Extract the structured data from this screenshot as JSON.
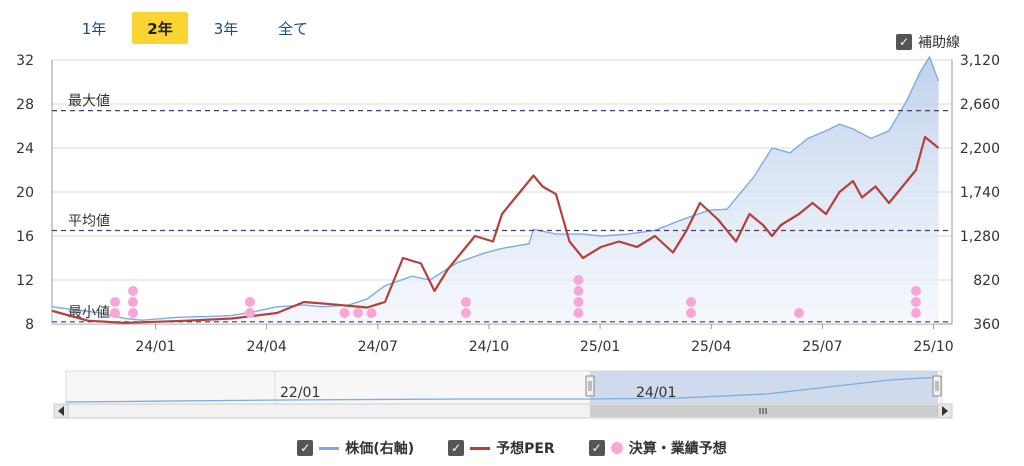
{
  "tabs": [
    {
      "label": "1年",
      "active": false
    },
    {
      "label": "2年",
      "active": true
    },
    {
      "label": "3年",
      "active": false
    },
    {
      "label": "全て",
      "active": false
    }
  ],
  "aux_toggle": {
    "label": "補助線",
    "checked": true
  },
  "legend": [
    {
      "label": "株価(右軸)",
      "kind": "line",
      "color": "#7aaee0"
    },
    {
      "label": "予想PER",
      "kind": "line",
      "color": "#b5403a"
    },
    {
      "label": "決算・業績予想",
      "kind": "dot",
      "color": "#f7a6d8"
    }
  ],
  "navigator": {
    "labels": [
      "22/01",
      "24/01"
    ]
  },
  "chart_data": {
    "type": "line",
    "x_ticks": [
      "24/01",
      "24/04",
      "24/07",
      "24/10",
      "25/01",
      "25/04",
      "25/07",
      "25/10"
    ],
    "y_left": {
      "ticks": [
        8,
        12,
        16,
        20,
        24,
        28,
        32
      ],
      "range": [
        8,
        32
      ]
    },
    "y_right": {
      "ticks": [
        360,
        820,
        1280,
        1740,
        2200,
        2660,
        3120
      ],
      "range": [
        360,
        3120
      ]
    },
    "reference_lines": [
      {
        "label": "最大値",
        "value": 27.4
      },
      {
        "label": "平均値",
        "value": 16.5
      },
      {
        "label": "最小値",
        "value": 8.2
      }
    ],
    "series": [
      {
        "name": "株価(右軸)",
        "axis": "right",
        "points": [
          [
            0,
            540
          ],
          [
            0.05,
            480
          ],
          [
            0.08,
            420
          ],
          [
            0.1,
            400
          ],
          [
            0.14,
            430
          ],
          [
            0.18,
            440
          ],
          [
            0.2,
            450
          ],
          [
            0.22,
            480
          ],
          [
            0.25,
            540
          ],
          [
            0.28,
            560
          ],
          [
            0.3,
            540
          ],
          [
            0.33,
            560
          ],
          [
            0.35,
            620
          ],
          [
            0.37,
            760
          ],
          [
            0.4,
            860
          ],
          [
            0.42,
            820
          ],
          [
            0.45,
            1000
          ],
          [
            0.48,
            1100
          ],
          [
            0.5,
            1150
          ],
          [
            0.53,
            1200
          ],
          [
            0.535,
            1350
          ],
          [
            0.56,
            1300
          ],
          [
            0.59,
            1300
          ],
          [
            0.61,
            1280
          ],
          [
            0.64,
            1300
          ],
          [
            0.67,
            1340
          ],
          [
            0.7,
            1450
          ],
          [
            0.73,
            1550
          ],
          [
            0.75,
            1560
          ],
          [
            0.78,
            1900
          ],
          [
            0.8,
            2200
          ],
          [
            0.82,
            2150
          ],
          [
            0.84,
            2300
          ],
          [
            0.86,
            2380
          ],
          [
            0.875,
            2450
          ],
          [
            0.89,
            2400
          ],
          [
            0.91,
            2300
          ],
          [
            0.93,
            2380
          ],
          [
            0.95,
            2700
          ],
          [
            0.965,
            3000
          ],
          [
            0.975,
            3150
          ],
          [
            0.985,
            2900
          ]
        ]
      },
      {
        "name": "予想PER",
        "axis": "left",
        "points": [
          [
            0,
            9.2
          ],
          [
            0.04,
            8.3
          ],
          [
            0.08,
            8.1
          ],
          [
            0.15,
            8.3
          ],
          [
            0.2,
            8.5
          ],
          [
            0.25,
            9.0
          ],
          [
            0.28,
            10.0
          ],
          [
            0.31,
            9.8
          ],
          [
            0.35,
            9.5
          ],
          [
            0.37,
            10.0
          ],
          [
            0.39,
            14.0
          ],
          [
            0.41,
            13.5
          ],
          [
            0.425,
            11.0
          ],
          [
            0.44,
            13.0
          ],
          [
            0.455,
            14.5
          ],
          [
            0.47,
            16.0
          ],
          [
            0.49,
            15.5
          ],
          [
            0.5,
            18.0
          ],
          [
            0.52,
            20.0
          ],
          [
            0.535,
            21.5
          ],
          [
            0.545,
            20.5
          ],
          [
            0.56,
            19.8
          ],
          [
            0.575,
            15.5
          ],
          [
            0.59,
            14.0
          ],
          [
            0.61,
            15.0
          ],
          [
            0.63,
            15.5
          ],
          [
            0.65,
            15.0
          ],
          [
            0.67,
            16.0
          ],
          [
            0.69,
            14.5
          ],
          [
            0.705,
            16.5
          ],
          [
            0.72,
            19.0
          ],
          [
            0.74,
            17.5
          ],
          [
            0.76,
            15.5
          ],
          [
            0.775,
            18.0
          ],
          [
            0.79,
            17.0
          ],
          [
            0.8,
            16.0
          ],
          [
            0.81,
            17.0
          ],
          [
            0.83,
            18.0
          ],
          [
            0.845,
            19.0
          ],
          [
            0.86,
            18.0
          ],
          [
            0.875,
            20.0
          ],
          [
            0.89,
            21.0
          ],
          [
            0.9,
            19.5
          ],
          [
            0.915,
            20.5
          ],
          [
            0.93,
            19.0
          ],
          [
            0.945,
            20.5
          ],
          [
            0.96,
            22.0
          ],
          [
            0.97,
            25.0
          ],
          [
            0.985,
            24.0
          ]
        ]
      }
    ],
    "earnings_markers": [
      {
        "x": 0.07,
        "count": 2
      },
      {
        "x": 0.09,
        "count": 3
      },
      {
        "x": 0.22,
        "count": 2
      },
      {
        "x": 0.325,
        "count": 1
      },
      {
        "x": 0.34,
        "count": 1
      },
      {
        "x": 0.355,
        "count": 1
      },
      {
        "x": 0.46,
        "count": 2
      },
      {
        "x": 0.585,
        "count": 4
      },
      {
        "x": 0.71,
        "count": 2
      },
      {
        "x": 0.83,
        "count": 1
      },
      {
        "x": 0.96,
        "count": 3
      }
    ]
  }
}
